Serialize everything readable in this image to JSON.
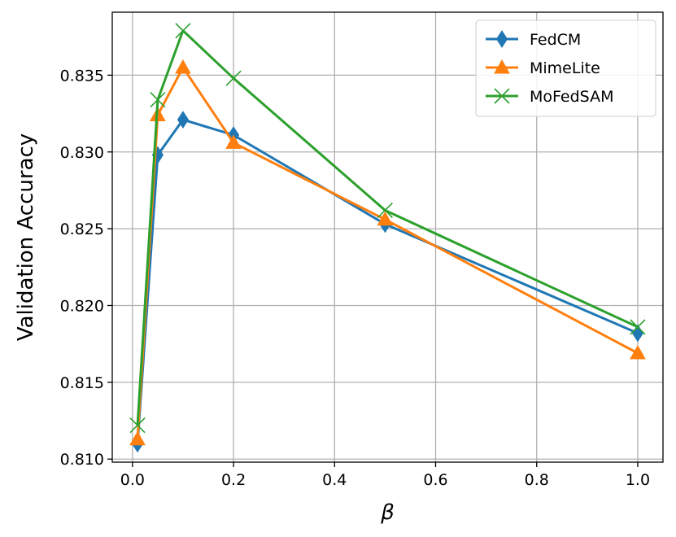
{
  "chart_data": {
    "type": "line",
    "title": "",
    "xlabel": "β",
    "ylabel": "Validation Accuracy",
    "xlim": [
      -0.04,
      1.05
    ],
    "ylim": [
      0.8098,
      0.8391
    ],
    "xticks": [
      0.0,
      0.2,
      0.4,
      0.6,
      0.8,
      1.0
    ],
    "xtick_labels": [
      "0.0",
      "0.2",
      "0.4",
      "0.6",
      "0.8",
      "1.0"
    ],
    "yticks": [
      0.81,
      0.815,
      0.82,
      0.825,
      0.83,
      0.835
    ],
    "ytick_labels": [
      "0.810",
      "0.815",
      "0.820",
      "0.825",
      "0.830",
      "0.835"
    ],
    "grid": true,
    "legend_position": "upper right",
    "x": [
      0.01,
      0.05,
      0.1,
      0.2,
      0.5,
      1.0
    ],
    "series": [
      {
        "name": "FedCM",
        "values": [
          0.811,
          0.8298,
          0.8321,
          0.8311,
          0.8253,
          0.8182
        ],
        "color": "#1f77b4",
        "marker": "thin_diamond"
      },
      {
        "name": "MimeLite",
        "values": [
          0.8113,
          0.8324,
          0.8355,
          0.8306,
          0.8256,
          0.8169
        ],
        "color": "#ff7f0e",
        "marker": "triangle"
      },
      {
        "name": "MoFedSAM",
        "values": [
          0.8122,
          0.8334,
          0.8379,
          0.8348,
          0.8262,
          0.8186
        ],
        "color": "#2ca02c",
        "marker": "x"
      }
    ]
  }
}
